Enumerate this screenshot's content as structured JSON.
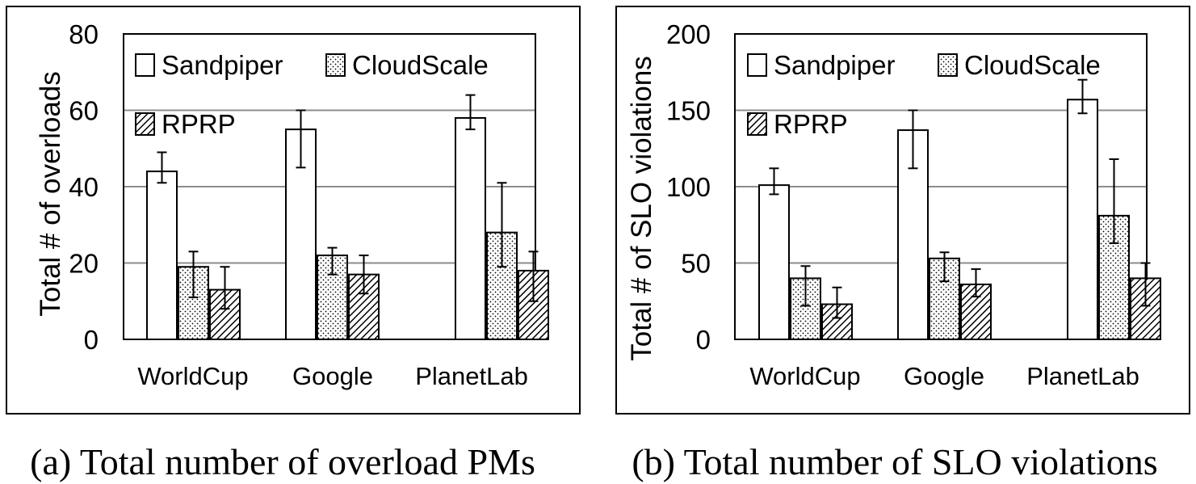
{
  "chart_data": [
    {
      "type": "bar",
      "ylabel": "Total # of overloads",
      "caption": "(a) Total number of overload PMs",
      "categories": [
        "WorldCup",
        "Google",
        "PlanetLab"
      ],
      "ylim": [
        0,
        80
      ],
      "yticks": [
        0,
        20,
        40,
        60,
        80
      ],
      "grid": true,
      "legend_position": "top-left",
      "series": [
        {
          "name": "Sandpiper",
          "pattern": "plain",
          "values": [
            44,
            55,
            58
          ],
          "err_low": [
            41,
            45,
            55
          ],
          "err_high": [
            49,
            60,
            64
          ]
        },
        {
          "name": "CloudScale",
          "pattern": "dotted",
          "values": [
            19,
            22,
            28
          ],
          "err_low": [
            11,
            17,
            19
          ],
          "err_high": [
            23,
            24,
            41
          ]
        },
        {
          "name": "RPRP",
          "pattern": "hatched",
          "values": [
            13,
            17,
            18
          ],
          "err_low": [
            8,
            12,
            10
          ],
          "err_high": [
            19,
            22,
            23
          ]
        }
      ]
    },
    {
      "type": "bar",
      "ylabel": "Total # of SLO violations",
      "caption": "(b) Total number of SLO violations",
      "categories": [
        "WorldCup",
        "Google",
        "PlanetLab"
      ],
      "ylim": [
        0,
        200
      ],
      "yticks": [
        0,
        50,
        100,
        150,
        200
      ],
      "grid": true,
      "legend_position": "top-left",
      "series": [
        {
          "name": "Sandpiper",
          "pattern": "plain",
          "values": [
            101,
            137,
            157
          ],
          "err_low": [
            95,
            112,
            148
          ],
          "err_high": [
            112,
            150,
            170
          ]
        },
        {
          "name": "CloudScale",
          "pattern": "dotted",
          "values": [
            40,
            53,
            81
          ],
          "err_low": [
            22,
            38,
            63
          ],
          "err_high": [
            48,
            57,
            118
          ]
        },
        {
          "name": "RPRP",
          "pattern": "hatched",
          "values": [
            23,
            36,
            40
          ],
          "err_low": [
            14,
            28,
            22
          ],
          "err_high": [
            34,
            46,
            50
          ]
        }
      ]
    }
  ]
}
